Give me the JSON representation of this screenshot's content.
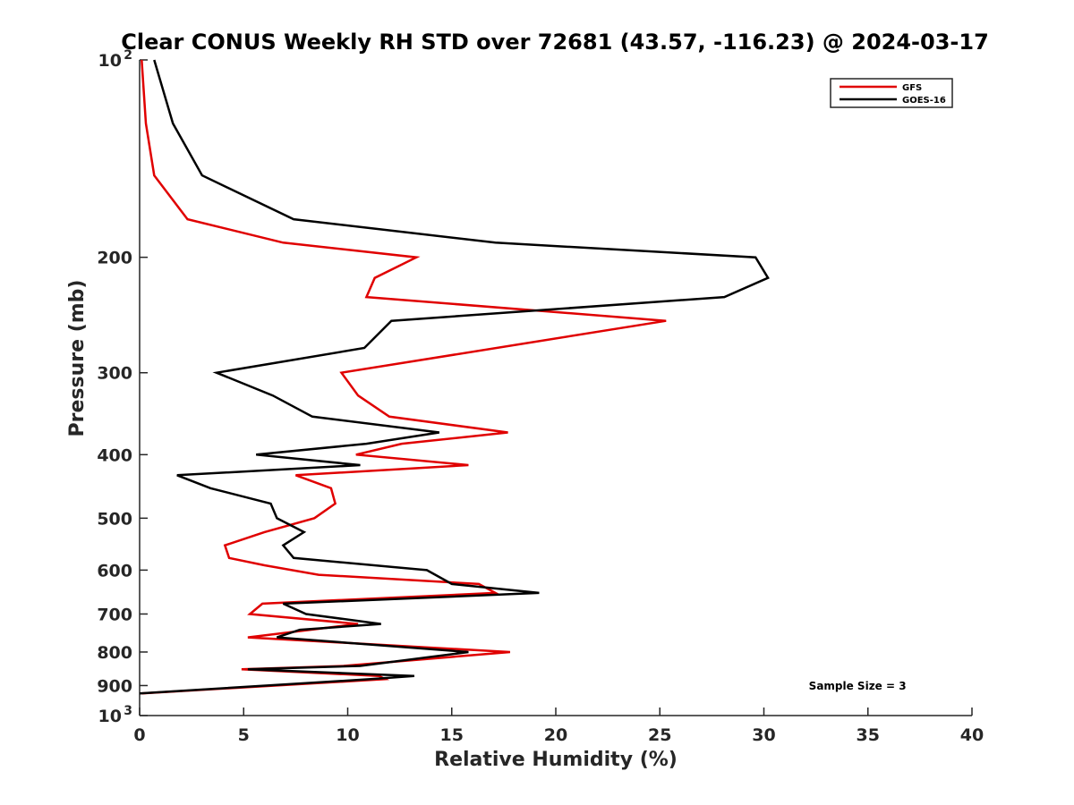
{
  "chart_data": {
    "type": "line",
    "title": "Clear CONUS Weekly RH STD over 72681 (43.57, -116.23) @ 2024-03-17",
    "xlabel": "Relative Humidity (%)",
    "ylabel": "Pressure (mb)",
    "xlim": [
      0,
      40
    ],
    "ylim": [
      1000,
      100
    ],
    "yscale": "log",
    "y_reversed": true,
    "x_ticks": [
      "0",
      "5",
      "10",
      "15",
      "20",
      "25",
      "30",
      "35",
      "40"
    ],
    "y_ticks": [
      {
        "value": 100,
        "label": "10",
        "sup": "2"
      },
      {
        "value": 200,
        "label": "200"
      },
      {
        "value": 300,
        "label": "300"
      },
      {
        "value": 400,
        "label": "400"
      },
      {
        "value": 500,
        "label": "500"
      },
      {
        "value": 600,
        "label": "600"
      },
      {
        "value": 700,
        "label": "700"
      },
      {
        "value": 800,
        "label": "800"
      },
      {
        "value": 900,
        "label": "900"
      },
      {
        "value": 1000,
        "label": "10",
        "sup": "3"
      }
    ],
    "legend_position": "top-right",
    "annotation": "Sample Size = 3",
    "series": [
      {
        "name": "GFS",
        "color": "#e00000",
        "points": [
          [
            0.1,
            100
          ],
          [
            0.3,
            125
          ],
          [
            0.7,
            150
          ],
          [
            2.3,
            175
          ],
          [
            6.9,
            190
          ],
          [
            13.3,
            200
          ],
          [
            11.3,
            215
          ],
          [
            10.9,
            230
          ],
          [
            25.3,
            250
          ],
          [
            9.7,
            300
          ],
          [
            10.5,
            325
          ],
          [
            12.0,
            350
          ],
          [
            17.7,
            370
          ],
          [
            12.6,
            385
          ],
          [
            10.4,
            400
          ],
          [
            15.8,
            415
          ],
          [
            7.5,
            430
          ],
          [
            9.2,
            450
          ],
          [
            9.4,
            475
          ],
          [
            8.4,
            500
          ],
          [
            6.0,
            525
          ],
          [
            4.1,
            550
          ],
          [
            4.3,
            575
          ],
          [
            6.0,
            590
          ],
          [
            8.6,
            610
          ],
          [
            16.3,
            630
          ],
          [
            17.1,
            650
          ],
          [
            5.9,
            675
          ],
          [
            5.3,
            700
          ],
          [
            10.5,
            725
          ],
          [
            6.7,
            750
          ],
          [
            5.2,
            760
          ],
          [
            17.8,
            800
          ],
          [
            9.8,
            840
          ],
          [
            4.9,
            850
          ],
          [
            11.5,
            870
          ],
          [
            11.8,
            880
          ],
          [
            0.1,
            925
          ]
        ]
      },
      {
        "name": "GOES-16",
        "color": "#000000",
        "points": [
          [
            0.7,
            100
          ],
          [
            1.6,
            125
          ],
          [
            3.0,
            150
          ],
          [
            7.4,
            175
          ],
          [
            17.1,
            190
          ],
          [
            29.6,
            200
          ],
          [
            30.2,
            215
          ],
          [
            28.1,
            230
          ],
          [
            12.1,
            250
          ],
          [
            10.8,
            275
          ],
          [
            3.7,
            300
          ],
          [
            6.4,
            325
          ],
          [
            8.3,
            350
          ],
          [
            14.4,
            370
          ],
          [
            10.9,
            385
          ],
          [
            5.6,
            400
          ],
          [
            10.6,
            415
          ],
          [
            1.8,
            430
          ],
          [
            3.4,
            450
          ],
          [
            6.3,
            475
          ],
          [
            6.6,
            500
          ],
          [
            7.9,
            525
          ],
          [
            6.9,
            550
          ],
          [
            7.4,
            575
          ],
          [
            13.8,
            600
          ],
          [
            15.0,
            630
          ],
          [
            19.2,
            650
          ],
          [
            6.9,
            675
          ],
          [
            8.0,
            700
          ],
          [
            11.6,
            725
          ],
          [
            7.7,
            740
          ],
          [
            6.6,
            760
          ],
          [
            15.8,
            800
          ],
          [
            10.6,
            840
          ],
          [
            5.2,
            850
          ],
          [
            13.2,
            870
          ],
          [
            11.1,
            880
          ],
          [
            0.0,
            925
          ]
        ]
      }
    ]
  }
}
